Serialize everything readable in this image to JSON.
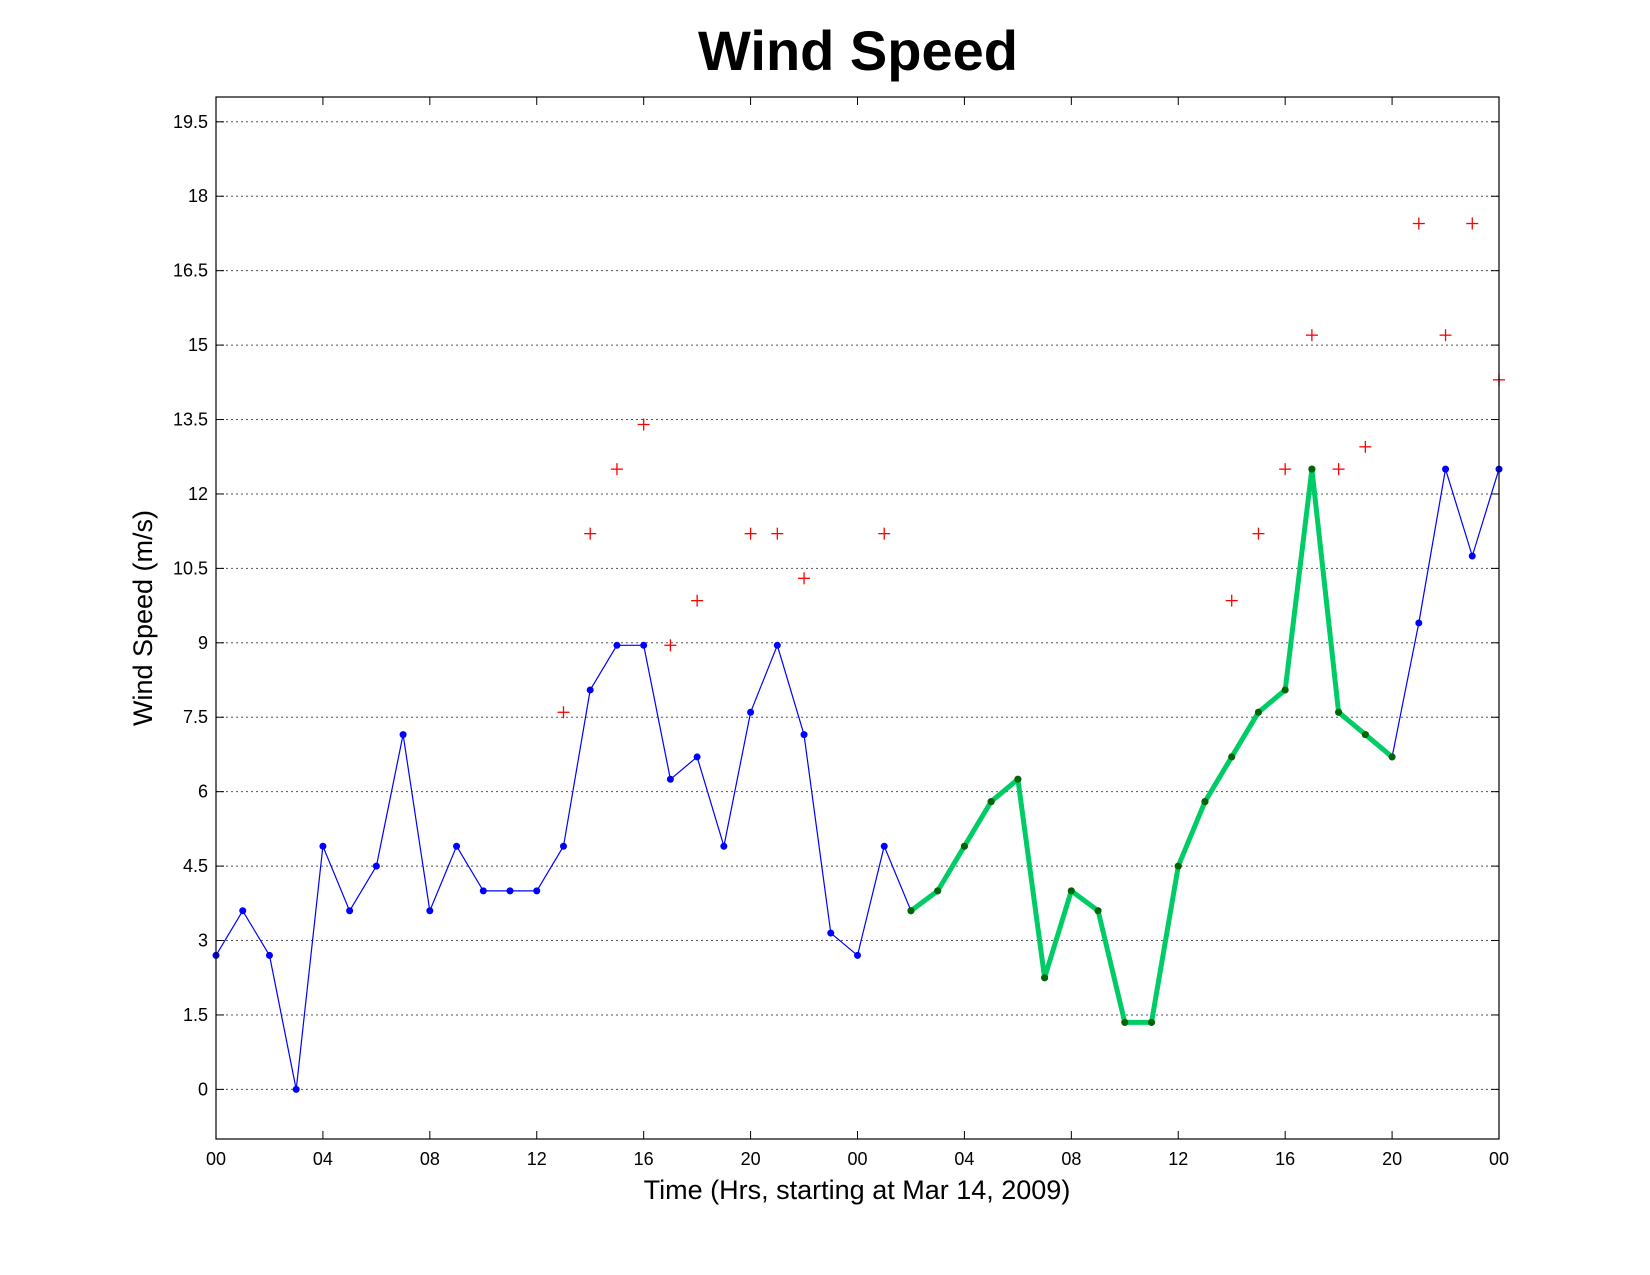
{
  "chart_data": {
    "type": "line",
    "title": "Wind Speed",
    "xlabel": "Time (Hrs, starting at Mar 14, 2009)",
    "ylabel": "Wind Speed (m/s)",
    "xlim": [
      0,
      48
    ],
    "ylim": [
      -1,
      20
    ],
    "grid": "horizontal",
    "x_ticks": [
      {
        "x": 0,
        "label": "00"
      },
      {
        "x": 4,
        "label": "04"
      },
      {
        "x": 8,
        "label": "08"
      },
      {
        "x": 12,
        "label": "12"
      },
      {
        "x": 16,
        "label": "16"
      },
      {
        "x": 20,
        "label": "20"
      },
      {
        "x": 24,
        "label": "00"
      },
      {
        "x": 28,
        "label": "04"
      },
      {
        "x": 32,
        "label": "08"
      },
      {
        "x": 36,
        "label": "12"
      },
      {
        "x": 40,
        "label": "16"
      },
      {
        "x": 44,
        "label": "20"
      },
      {
        "x": 48,
        "label": "00"
      }
    ],
    "y_ticks": [
      {
        "y": 0,
        "label": "0"
      },
      {
        "y": 1.5,
        "label": "1.5"
      },
      {
        "y": 3,
        "label": "3"
      },
      {
        "y": 4.5,
        "label": "4.5"
      },
      {
        "y": 6,
        "label": "6"
      },
      {
        "y": 7.5,
        "label": "7.5"
      },
      {
        "y": 9,
        "label": "9"
      },
      {
        "y": 10.5,
        "label": "10.5"
      },
      {
        "y": 12,
        "label": "12"
      },
      {
        "y": 13.5,
        "label": "13.5"
      },
      {
        "y": 15,
        "label": "15"
      },
      {
        "y": 16.5,
        "label": "16.5"
      },
      {
        "y": 18,
        "label": "18"
      },
      {
        "y": 19.5,
        "label": "19.5"
      }
    ],
    "series": [
      {
        "style": "line-dots",
        "color": "#0000ff",
        "x": [
          0,
          1,
          2,
          3,
          4,
          5,
          6,
          7,
          8,
          9,
          10,
          11,
          12,
          13,
          14,
          15,
          16,
          17,
          18,
          19,
          20,
          21,
          22,
          23,
          24,
          25,
          26,
          27,
          28,
          29,
          30,
          31,
          32,
          33,
          34,
          35,
          36,
          37,
          38,
          39,
          40,
          41,
          42,
          43,
          44,
          45,
          46,
          47,
          48
        ],
        "y": [
          2.7,
          3.6,
          2.7,
          0,
          4.9,
          3.6,
          4.5,
          7.15,
          3.6,
          4.9,
          4.0,
          4.0,
          4.0,
          4.9,
          8.05,
          8.95,
          8.95,
          6.25,
          6.7,
          4.9,
          7.6,
          8.95,
          7.15,
          3.15,
          2.7,
          4.9,
          3.6,
          4.0,
          4.9,
          5.8,
          6.25,
          2.25,
          4.0,
          3.6,
          1.35,
          1.35,
          4.5,
          5.8,
          6.7,
          7.6,
          8.05,
          12.5,
          7.6,
          7.15,
          6.7,
          9.4,
          12.5,
          10.75,
          12.5
        ]
      },
      {
        "style": "thick-line",
        "color": "#00cc66",
        "marker_color": "#006600",
        "x": [
          26,
          27,
          28,
          29,
          30,
          31,
          32,
          33,
          34,
          35,
          36,
          37,
          38,
          39,
          40,
          41,
          42,
          43,
          44
        ],
        "y": [
          3.6,
          4.0,
          4.9,
          5.8,
          6.25,
          2.25,
          4.0,
          3.6,
          1.35,
          1.35,
          4.5,
          5.8,
          6.7,
          7.6,
          8.05,
          12.5,
          7.6,
          7.15,
          6.7
        ]
      },
      {
        "style": "plus-markers",
        "color": "#ff0000",
        "x": [
          13,
          14,
          15,
          16,
          17,
          18,
          20,
          21,
          22,
          25,
          38,
          39,
          40,
          41,
          42,
          43,
          45,
          46,
          47,
          48
        ],
        "y": [
          7.6,
          11.2,
          12.5,
          13.4,
          8.95,
          9.85,
          11.2,
          11.2,
          10.3,
          11.2,
          9.85,
          11.2,
          12.5,
          15.2,
          12.5,
          12.95,
          17.45,
          15.2,
          17.45,
          14.3
        ]
      }
    ]
  }
}
